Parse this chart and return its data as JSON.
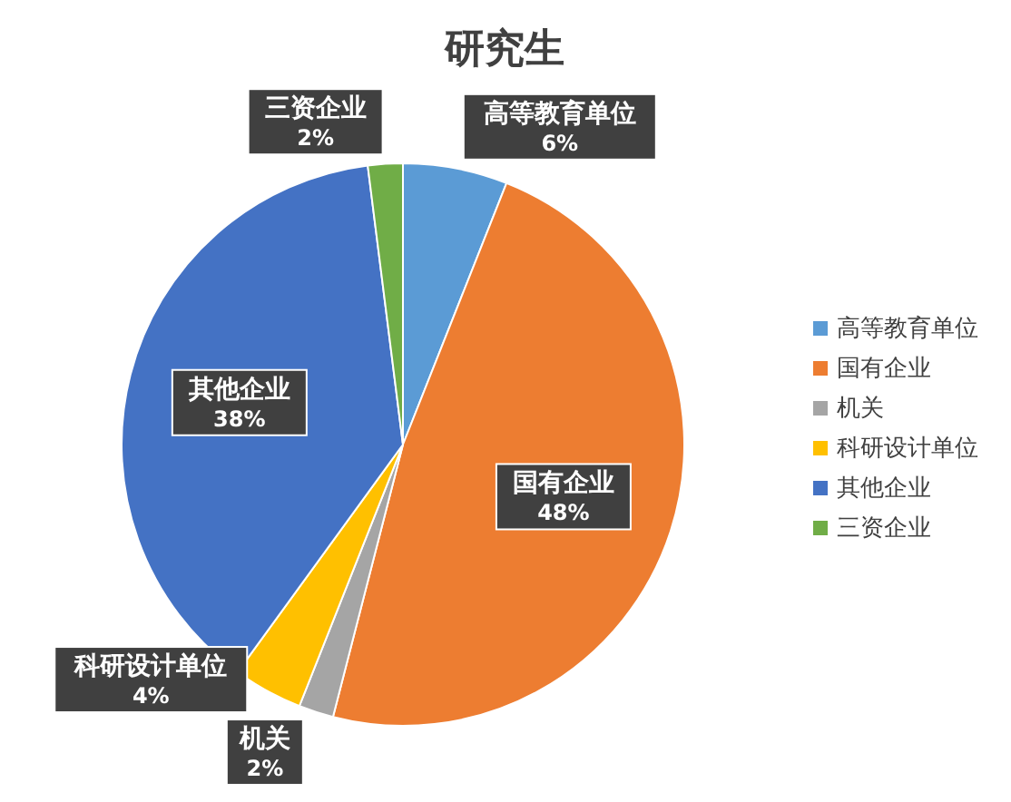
{
  "chart_data": {
    "type": "pie",
    "title": "研究生",
    "categories": [
      "高等教育单位",
      "国有企业",
      "机关",
      "科研设计单位",
      "其他企业",
      "三资企业"
    ],
    "values": [
      6,
      48,
      2,
      4,
      38,
      2
    ],
    "colors": [
      "#5b9bd5",
      "#ed7d31",
      "#a5a5a5",
      "#ffc000",
      "#4472c4",
      "#70ad47"
    ],
    "value_labels": [
      "6%",
      "48%",
      "2%",
      "4%",
      "38%",
      "2%"
    ],
    "legend": "right"
  }
}
